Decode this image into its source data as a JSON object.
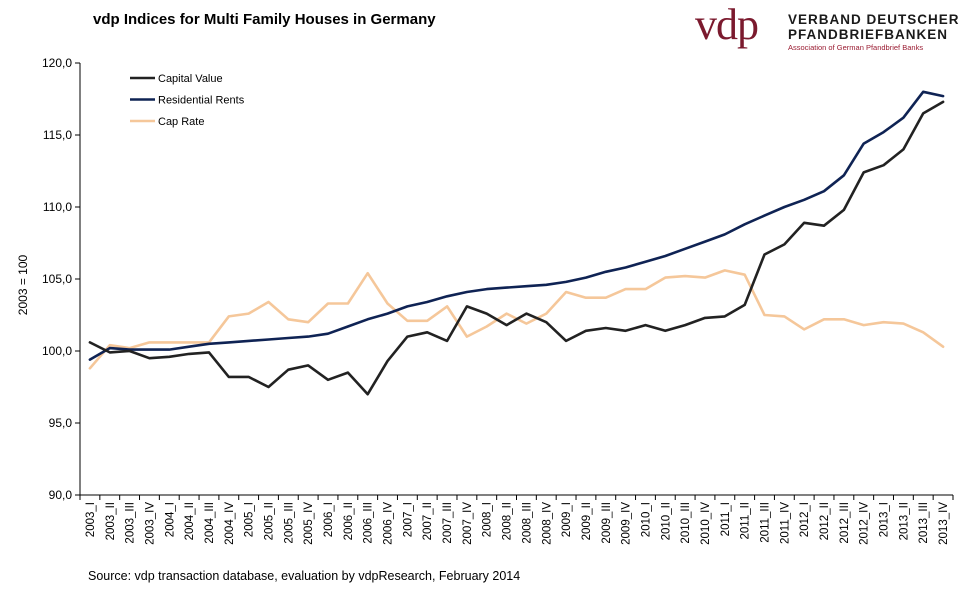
{
  "title": "vdp Indices for Multi Family Houses in Germany",
  "logo": {
    "mark": "vdp",
    "line1": "VERBAND DEUTSCHER",
    "line2": "PFANDBRIEFBANKEN",
    "line3": "Association of German Pfandbrief Banks"
  },
  "source": "Source: vdp transaction database, evaluation by vdpResearch, February 2014",
  "chart_data": {
    "type": "line",
    "title": "vdp Indices for Multi Family Houses in Germany",
    "xlabel": "",
    "ylabel": "2003 = 100",
    "ylim": [
      90,
      120
    ],
    "yticks": [
      "90,0",
      "95,0",
      "100,0",
      "105,0",
      "110,0",
      "115,0",
      "120,0"
    ],
    "legend_position": "top-left",
    "grid": false,
    "categories": [
      "2003_I",
      "2003_II",
      "2003_III",
      "2003_IV",
      "2004_I",
      "2004_II",
      "2004_III",
      "2004_IV",
      "2005_I",
      "2005_II",
      "2005_III",
      "2005_IV",
      "2006_I",
      "2006_II",
      "2006_III",
      "2006_IV",
      "2007_I",
      "2007_II",
      "2007_III",
      "2007_IV",
      "2008_I",
      "2008_II",
      "2008_III",
      "2008_IV",
      "2009_I",
      "2009_II",
      "2009_III",
      "2009_IV",
      "2010_I",
      "2010_II",
      "2010_III",
      "2010_IV",
      "2011_I",
      "2011_II",
      "2011_III",
      "2011_IV",
      "2012_I",
      "2012_II",
      "2012_III",
      "2012_IV",
      "2013_I",
      "2013_II",
      "2013_III",
      "2013_IV"
    ],
    "series": [
      {
        "name": "Capital Value",
        "color": "#222222",
        "values": [
          100.6,
          99.9,
          100.0,
          99.5,
          99.6,
          99.8,
          99.9,
          98.2,
          98.2,
          97.5,
          98.7,
          99.0,
          98.0,
          98.5,
          97.0,
          99.3,
          101.0,
          101.3,
          100.7,
          103.1,
          102.6,
          101.8,
          102.6,
          102.0,
          100.7,
          101.4,
          101.6,
          101.4,
          101.8,
          101.4,
          101.8,
          102.3,
          102.4,
          103.2,
          106.7,
          107.4,
          108.9,
          108.7,
          109.8,
          112.4,
          112.9,
          114.0,
          116.5,
          117.3
        ]
      },
      {
        "name": "Residential Rents",
        "color": "#0f2354",
        "values": [
          99.4,
          100.2,
          100.1,
          100.1,
          100.1,
          100.3,
          100.5,
          100.6,
          100.7,
          100.8,
          100.9,
          101.0,
          101.2,
          101.7,
          102.2,
          102.6,
          103.1,
          103.4,
          103.8,
          104.1,
          104.3,
          104.4,
          104.5,
          104.6,
          104.8,
          105.1,
          105.5,
          105.8,
          106.2,
          106.6,
          107.1,
          107.6,
          108.1,
          108.8,
          109.4,
          110.0,
          110.5,
          111.1,
          112.2,
          114.4,
          115.2,
          116.2,
          118.0,
          117.7
        ]
      },
      {
        "name": "Cap Rate",
        "color": "#f5c79a",
        "values": [
          98.8,
          100.4,
          100.2,
          100.6,
          100.6,
          100.6,
          100.6,
          102.4,
          102.6,
          103.4,
          102.2,
          102.0,
          103.3,
          103.3,
          105.4,
          103.3,
          102.1,
          102.1,
          103.1,
          101.0,
          101.7,
          102.6,
          101.9,
          102.6,
          104.1,
          103.7,
          103.7,
          104.3,
          104.3,
          105.1,
          105.2,
          105.1,
          105.6,
          105.3,
          102.5,
          102.4,
          101.5,
          102.2,
          102.2,
          101.8,
          102.0,
          101.9,
          101.3,
          100.3
        ]
      }
    ]
  }
}
